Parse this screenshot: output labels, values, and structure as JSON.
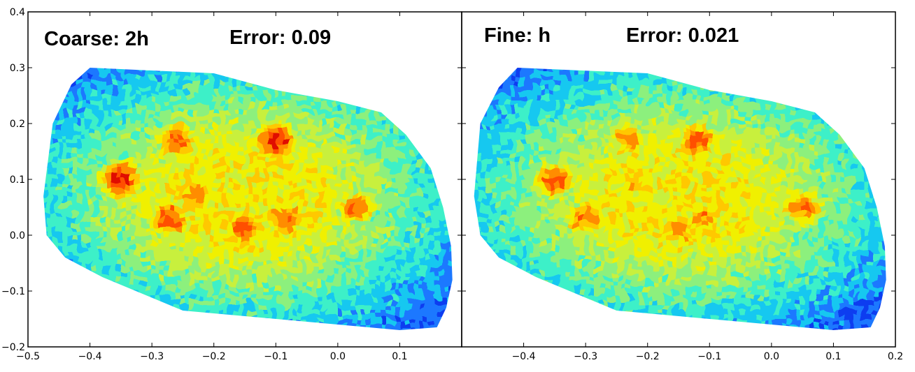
{
  "chart_data": [
    {
      "type": "heatmap",
      "annotations": [
        "Coarse: 2h",
        "Error: 0.09"
      ],
      "xlim": [
        -0.5,
        0.2
      ],
      "ylim": [
        -0.2,
        0.4
      ],
      "x_ticks": [
        -0.5,
        -0.4,
        -0.3,
        -0.2,
        -0.1,
        0.0,
        0.1
      ],
      "x_tick_labels": [
        "−0.5",
        "−0.4",
        "−0.3",
        "−0.2",
        "−0.1",
        "0.0",
        "0.1"
      ],
      "y_ticks": [
        -0.2,
        -0.1,
        0.0,
        0.1,
        0.2,
        0.3,
        0.4
      ],
      "y_tick_labels": [
        "−0.2",
        "−0.1",
        "0.0",
        "0.1",
        "0.2",
        "0.3",
        "0.4"
      ],
      "colormap": "jet",
      "grid": false,
      "domain_outline": [
        [
          -0.475,
          0.07
        ],
        [
          -0.46,
          0.2
        ],
        [
          -0.43,
          0.27
        ],
        [
          -0.4,
          0.3
        ],
        [
          -0.2,
          0.29
        ],
        [
          -0.1,
          0.26
        ],
        [
          0.0,
          0.24
        ],
        [
          0.07,
          0.22
        ],
        [
          0.11,
          0.18
        ],
        [
          0.15,
          0.12
        ],
        [
          0.17,
          0.05
        ],
        [
          0.183,
          -0.02
        ],
        [
          0.185,
          -0.08
        ],
        [
          0.175,
          -0.13
        ],
        [
          0.16,
          -0.165
        ],
        [
          0.1,
          -0.17
        ],
        [
          -0.25,
          -0.135
        ],
        [
          -0.38,
          -0.075
        ],
        [
          -0.44,
          -0.04
        ],
        [
          -0.47,
          0.0
        ]
      ],
      "hotspots": [
        {
          "x": -0.35,
          "y": 0.1,
          "value": 0.88
        },
        {
          "x": -0.26,
          "y": 0.17,
          "value": 0.8
        },
        {
          "x": -0.27,
          "y": 0.03,
          "value": 0.8
        },
        {
          "x": -0.23,
          "y": 0.07,
          "value": 0.75
        },
        {
          "x": -0.1,
          "y": 0.17,
          "value": 0.88
        },
        {
          "x": -0.15,
          "y": 0.01,
          "value": 0.8
        },
        {
          "x": -0.08,
          "y": 0.03,
          "value": 0.78
        },
        {
          "x": 0.03,
          "y": 0.05,
          "value": 0.75
        }
      ]
    },
    {
      "type": "heatmap",
      "annotations": [
        "Fine: h",
        "Error: 0.021"
      ],
      "xlim": [
        -0.5,
        0.2
      ],
      "ylim": [
        -0.2,
        0.4
      ],
      "x_ticks": [
        -0.4,
        -0.3,
        -0.2,
        -0.1,
        0.0,
        0.1,
        0.2
      ],
      "x_tick_labels": [
        "−0.4",
        "−0.3",
        "−0.2",
        "−0.1",
        "0.0",
        "0.1",
        "0.2"
      ],
      "colormap": "jet",
      "grid": false,
      "domain_outline": [
        [
          -0.48,
          0.07
        ],
        [
          -0.47,
          0.2
        ],
        [
          -0.44,
          0.265
        ],
        [
          -0.41,
          0.3
        ],
        [
          -0.2,
          0.29
        ],
        [
          -0.1,
          0.26
        ],
        [
          0.0,
          0.24
        ],
        [
          0.07,
          0.22
        ],
        [
          0.11,
          0.18
        ],
        [
          0.15,
          0.12
        ],
        [
          0.17,
          0.05
        ],
        [
          0.183,
          -0.02
        ],
        [
          0.185,
          -0.08
        ],
        [
          0.175,
          -0.13
        ],
        [
          0.16,
          -0.165
        ],
        [
          0.1,
          -0.17
        ],
        [
          -0.25,
          -0.135
        ],
        [
          -0.38,
          -0.075
        ],
        [
          -0.44,
          -0.04
        ],
        [
          -0.47,
          0.0
        ]
      ],
      "hotspots": [
        {
          "x": -0.35,
          "y": 0.1,
          "value": 0.8
        },
        {
          "x": -0.3,
          "y": 0.03,
          "value": 0.75
        },
        {
          "x": -0.23,
          "y": 0.17,
          "value": 0.72
        },
        {
          "x": -0.12,
          "y": 0.17,
          "value": 0.8
        },
        {
          "x": -0.11,
          "y": 0.03,
          "value": 0.72
        },
        {
          "x": -0.15,
          "y": 0.01,
          "value": 0.75
        },
        {
          "x": 0.05,
          "y": 0.05,
          "value": 0.78
        },
        {
          "x": -0.22,
          "y": 0.09,
          "value": 0.68
        }
      ]
    }
  ],
  "colors": {
    "outside": "#000080",
    "background": "#ffffff",
    "axes": "#000000"
  }
}
